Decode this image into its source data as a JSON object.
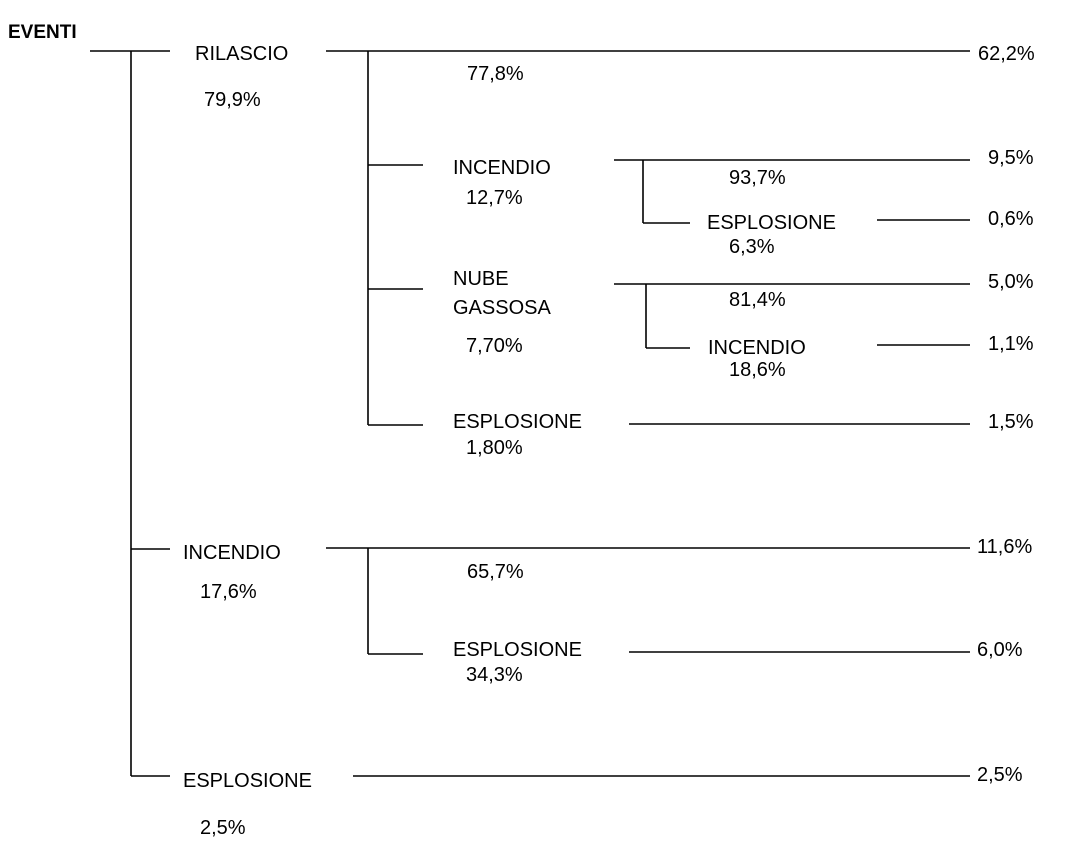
{
  "root": "EVENTI",
  "nodes": {
    "rilascio": {
      "label": "RILASCIO",
      "pct": "79,9%"
    },
    "rilascio_cont": {
      "pct": "77,8%",
      "outcome": "62,2%"
    },
    "rilascio_incendio": {
      "label": "INCENDIO",
      "pct": "12,7%"
    },
    "rilascio_incendio_cont": {
      "pct": "93,7%",
      "outcome": "9,5%"
    },
    "rilascio_incendio_esplosione": {
      "label": "ESPLOSIONE",
      "pct": "6,3%",
      "outcome": "0,6%"
    },
    "rilascio_nube": {
      "label_line1": "NUBE",
      "label_line2": "GASSOSA",
      "pct": "7,70%"
    },
    "rilascio_nube_cont": {
      "pct": "81,4%",
      "outcome": "5,0%"
    },
    "rilascio_nube_incendio": {
      "label": "INCENDIO",
      "pct": "18,6%",
      "outcome": "1,1%"
    },
    "rilascio_esplosione": {
      "label": "ESPLOSIONE",
      "pct": "1,80%",
      "outcome": "1,5%"
    },
    "incendio": {
      "label": "INCENDIO",
      "pct": "17,6%"
    },
    "incendio_cont": {
      "pct": "65,7%",
      "outcome": "11,6%"
    },
    "incendio_esplosione": {
      "label": "ESPLOSIONE",
      "pct": "34,3%",
      "outcome": "6,0%"
    },
    "esplosione": {
      "label": "ESPLOSIONE",
      "pct": "2,5%",
      "outcome": "2,5%"
    }
  }
}
